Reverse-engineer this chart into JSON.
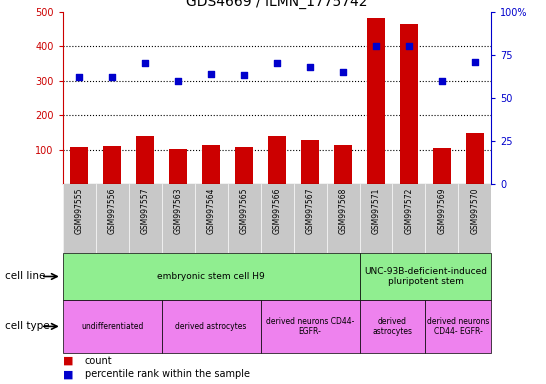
{
  "title": "GDS4669 / ILMN_1775742",
  "samples": [
    "GSM997555",
    "GSM997556",
    "GSM997557",
    "GSM997563",
    "GSM997564",
    "GSM997565",
    "GSM997566",
    "GSM997567",
    "GSM997568",
    "GSM997571",
    "GSM997572",
    "GSM997569",
    "GSM997570"
  ],
  "count_values": [
    107,
    110,
    140,
    103,
    115,
    107,
    140,
    128,
    113,
    480,
    463,
    105,
    148
  ],
  "percentile_values": [
    62,
    62,
    70,
    60,
    64,
    63,
    70,
    68,
    65,
    80,
    80,
    60,
    71
  ],
  "ylim_left": [
    0,
    500
  ],
  "ylim_right": [
    0,
    100
  ],
  "yticks_left": [
    100,
    200,
    300,
    400,
    500
  ],
  "yticks_right": [
    0,
    25,
    50,
    75,
    100
  ],
  "cell_line_groups": [
    {
      "label": "embryonic stem cell H9",
      "start": 0,
      "end": 9,
      "color": "#90EE90"
    },
    {
      "label": "UNC-93B-deficient-induced\npluripotent stem",
      "start": 9,
      "end": 13,
      "color": "#90EE90"
    }
  ],
  "cell_type_groups": [
    {
      "label": "undifferentiated",
      "start": 0,
      "end": 3,
      "color": "#EE82EE"
    },
    {
      "label": "derived astrocytes",
      "start": 3,
      "end": 6,
      "color": "#EE82EE"
    },
    {
      "label": "derived neurons CD44-\nEGFR-",
      "start": 6,
      "end": 9,
      "color": "#EE82EE"
    },
    {
      "label": "derived\nastrocytes",
      "start": 9,
      "end": 11,
      "color": "#EE82EE"
    },
    {
      "label": "derived neurons\nCD44- EGFR-",
      "start": 11,
      "end": 13,
      "color": "#EE82EE"
    }
  ],
  "bar_color": "#CC0000",
  "dot_color": "#0000CC",
  "left_axis_color": "#CC0000",
  "right_axis_color": "#0000CC",
  "xtick_bg": "#C8C8C8",
  "cell_line_color": "#90EE90",
  "cell_type_color": "#EE82EE"
}
